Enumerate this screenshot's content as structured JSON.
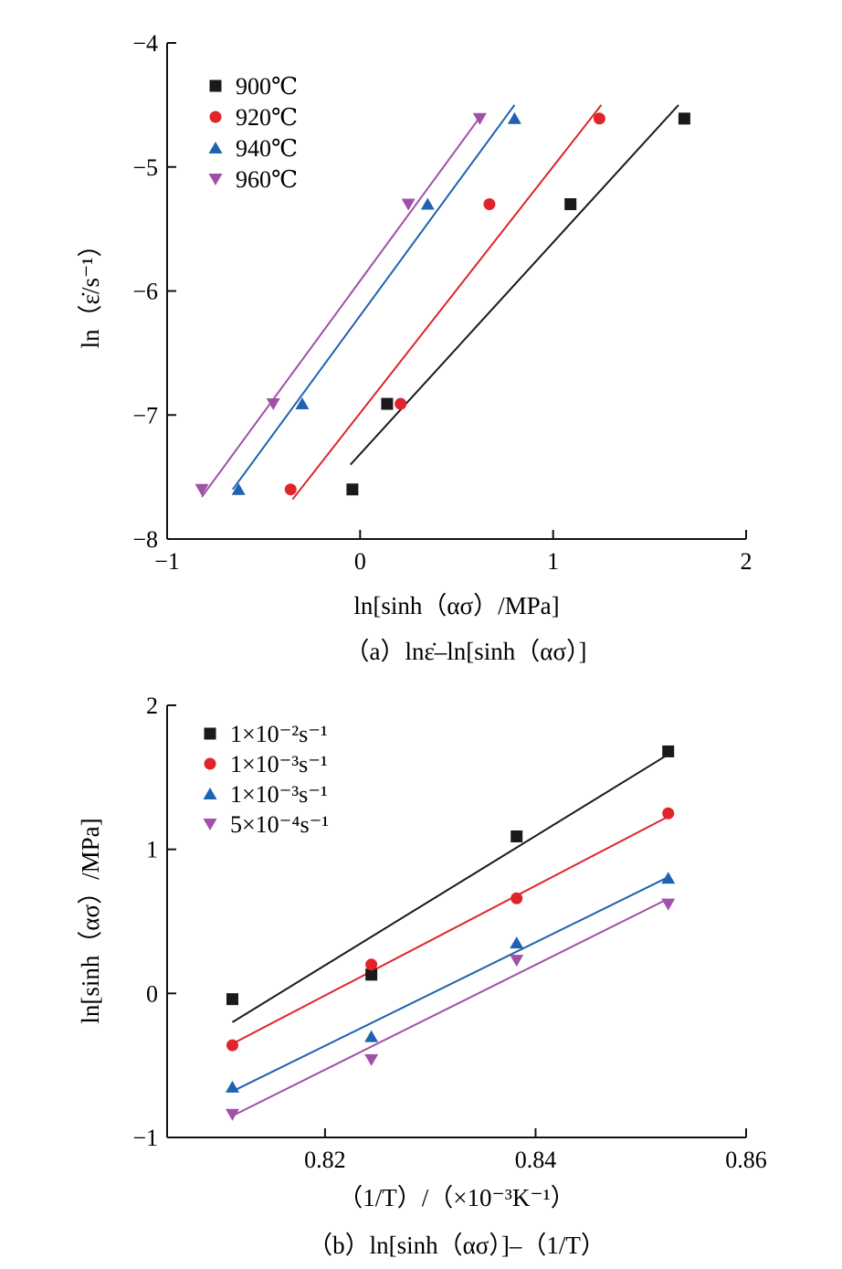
{
  "chart_data": [
    {
      "type": "scatter",
      "caption": "（a）lnε̇–ln[sinh（ασ）]",
      "xlabel": "ln[sinh（ασ）/MPa]",
      "ylabel": "ln（ε̇/s⁻¹）",
      "xlim": [
        -1,
        2
      ],
      "ylim": [
        -8,
        -4
      ],
      "xticks": [
        -1,
        0,
        1,
        2
      ],
      "yticks": [
        -8,
        -7,
        -6,
        -5,
        -4
      ],
      "xtick_labels": [
        "−1",
        "0",
        "1",
        "2"
      ],
      "ytick_labels": [
        "−8",
        "−7",
        "−6",
        "−5",
        "−4"
      ],
      "legend_position": "top-left",
      "series": [
        {
          "name": "900℃",
          "marker": "square",
          "color": "#1a1a1a",
          "x": [
            -0.04,
            0.14,
            1.09,
            1.68
          ],
          "y": [
            -7.6,
            -6.91,
            -5.3,
            -4.61
          ],
          "fit": [
            [
              -0.05,
              -7.4
            ],
            [
              1.65,
              -4.5
            ]
          ]
        },
        {
          "name": "920℃",
          "marker": "circle",
          "color": "#e0242a",
          "x": [
            -0.36,
            0.21,
            0.67,
            1.24
          ],
          "y": [
            -7.6,
            -6.91,
            -5.3,
            -4.61
          ],
          "fit": [
            [
              -0.35,
              -7.68
            ],
            [
              1.25,
              -4.5
            ]
          ]
        },
        {
          "name": "940℃",
          "marker": "triangle-up",
          "color": "#1f63b0",
          "x": [
            -0.63,
            -0.3,
            0.35,
            0.8
          ],
          "y": [
            -7.6,
            -6.91,
            -5.3,
            -4.61
          ],
          "fit": [
            [
              -0.66,
              -7.6
            ],
            [
              0.8,
              -4.5
            ]
          ]
        },
        {
          "name": "960℃",
          "marker": "triangle-down",
          "color": "#a050a8",
          "x": [
            -0.82,
            -0.45,
            0.25,
            0.62
          ],
          "y": [
            -7.6,
            -6.91,
            -5.3,
            -4.61
          ],
          "fit": [
            [
              -0.82,
              -7.66
            ],
            [
              0.62,
              -4.6
            ]
          ]
        }
      ]
    },
    {
      "type": "scatter",
      "caption": "（b）ln[sinh（ασ）]–（1/T）",
      "xlabel": "（1/T）/（×10⁻³K⁻¹）",
      "ylabel": "ln[sinh（ασ）/MPa]",
      "xlim": [
        0.805,
        0.86
      ],
      "ylim": [
        -1,
        2
      ],
      "xticks": [
        0.82,
        0.84,
        0.86
      ],
      "yticks": [
        -1,
        0,
        1,
        2
      ],
      "xtick_labels": [
        "0.82",
        "0.84",
        "0.86"
      ],
      "ytick_labels": [
        "−1",
        "0",
        "1",
        "2"
      ],
      "legend_position": "top-left",
      "series": [
        {
          "name": "1×10⁻²s⁻¹",
          "marker": "square",
          "color": "#1a1a1a",
          "x": [
            0.8112,
            0.8244,
            0.8382,
            0.8526
          ],
          "y": [
            -0.04,
            0.13,
            1.09,
            1.68
          ],
          "fit": [
            [
              0.8112,
              -0.2
            ],
            [
              0.8524,
              1.65
            ]
          ]
        },
        {
          "name": "1×10⁻³s⁻¹",
          "marker": "circle",
          "color": "#e0242a",
          "x": [
            0.8112,
            0.8244,
            0.8382,
            0.8526
          ],
          "y": [
            -0.36,
            0.2,
            0.66,
            1.25
          ],
          "fit": [
            [
              0.8112,
              -0.35
            ],
            [
              0.8524,
              1.22
            ]
          ]
        },
        {
          "name": "1×10⁻³s⁻¹",
          "marker": "triangle-up",
          "color": "#1f63b0",
          "x": [
            0.8112,
            0.8244,
            0.8382,
            0.8526
          ],
          "y": [
            -0.65,
            -0.3,
            0.35,
            0.8
          ],
          "fit": [
            [
              0.8112,
              -0.68
            ],
            [
              0.8524,
              0.8
            ]
          ]
        },
        {
          "name": "5×10⁻⁴s⁻¹",
          "marker": "triangle-down",
          "color": "#a050a8",
          "x": [
            0.8112,
            0.8244,
            0.8382,
            0.8526
          ],
          "y": [
            -0.84,
            -0.46,
            0.23,
            0.62
          ],
          "fit": [
            [
              0.8112,
              -0.85
            ],
            [
              0.8524,
              0.65
            ]
          ]
        }
      ]
    }
  ]
}
